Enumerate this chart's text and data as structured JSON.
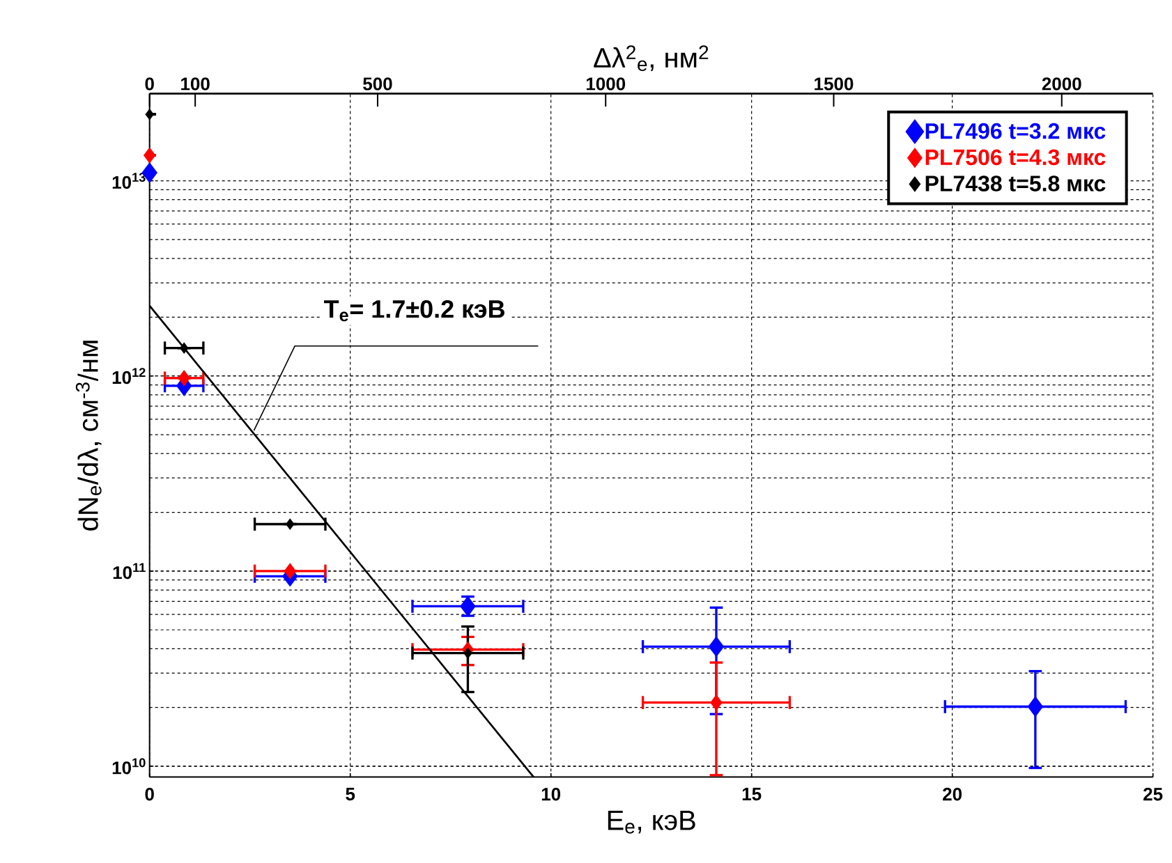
{
  "chart_data": {
    "type": "scatter",
    "xlabel": "E$_{e}$, кэВ",
    "ylabel": "dN$_{e}$/dλ, см$^{-3}$/нм",
    "x2label": "Δλ$^{2}$$_{e}$, нм$^{2}$",
    "xlim": [
      0,
      25
    ],
    "xticks": [
      0,
      5,
      10,
      15,
      20,
      25
    ],
    "x2lim": [
      0,
      2200
    ],
    "x2ticks": [
      0,
      100,
      500,
      1000,
      1500,
      2000
    ],
    "ylim": [
      8800000000.0,
      28000000000000.0
    ],
    "yticks": [
      {
        "value": 10000000000.0,
        "label": "10$^{10}$"
      },
      {
        "value": 100000000000.0,
        "label": "10$^{11}$"
      },
      {
        "value": 1000000000000.0,
        "label": "10$^{12}$"
      },
      {
        "value": 10000000000000.0,
        "label": "10$^{13}$"
      }
    ],
    "log": "y",
    "grid": true,
    "legend": "top right",
    "marker": "diamond",
    "series": [
      {
        "name": "PL7496   t=3.2 мкс",
        "color": "#0000ff",
        "x": [
          0,
          0.86,
          3.5,
          7.93,
          14.12,
          22.07
        ],
        "values": [
          11000000000000.0,
          890000000000.0,
          94000000000.0,
          66000000000.0,
          41000000000.0,
          20200000000.0
        ],
        "errors": [
          null,
          null,
          null,
          [
            59000000000.0,
            74000000000.0
          ],
          [
            18500000000.0,
            65000000000.0
          ],
          [
            9800000000.0,
            30700000000.0
          ]
        ],
        "xerrors": [
          null,
          0.48,
          0.88,
          1.38,
          1.83,
          2.25
        ]
      },
      {
        "name": "PL7506   t=4.3 мкс",
        "color": "#ff0000",
        "x": [
          0,
          0.86,
          3.5,
          7.93,
          14.12
        ],
        "values": [
          13500000000000.0,
          975000000000.0,
          100000000000.0,
          39600000000.0,
          21200000000.0
        ],
        "errors": [
          null,
          null,
          null,
          [
            33000000000.0,
            46000000000.0
          ],
          [
            9000000000.0,
            34000000000.0
          ]
        ],
        "xerrors": [
          null,
          0.48,
          0.88,
          1.38,
          1.83
        ]
      },
      {
        "name": "PL7438   t=5.8 мкс",
        "color": "#000000",
        "x": [
          0,
          0.86,
          3.5,
          7.93
        ],
        "values": [
          21900000000000.0,
          1390000000000.0,
          174000000000.0,
          38000000000.0
        ],
        "errors": [
          null,
          null,
          null,
          [
            24000000000.0,
            52000000000.0
          ]
        ],
        "xerrors": [
          null,
          0.48,
          0.88,
          1.38
        ]
      },
      {
        "type": "line",
        "marker": "none",
        "color": "#000000",
        "x": [
          0,
          9.57
        ],
        "values": [
          2290000000000.0,
          8800000000.0
        ]
      }
    ],
    "annotations": [
      {
        "text": "T$_{e}$= 1.7±0.2 кэВ",
        "x": 2.6,
        "y": 525000000000.0
      }
    ]
  }
}
